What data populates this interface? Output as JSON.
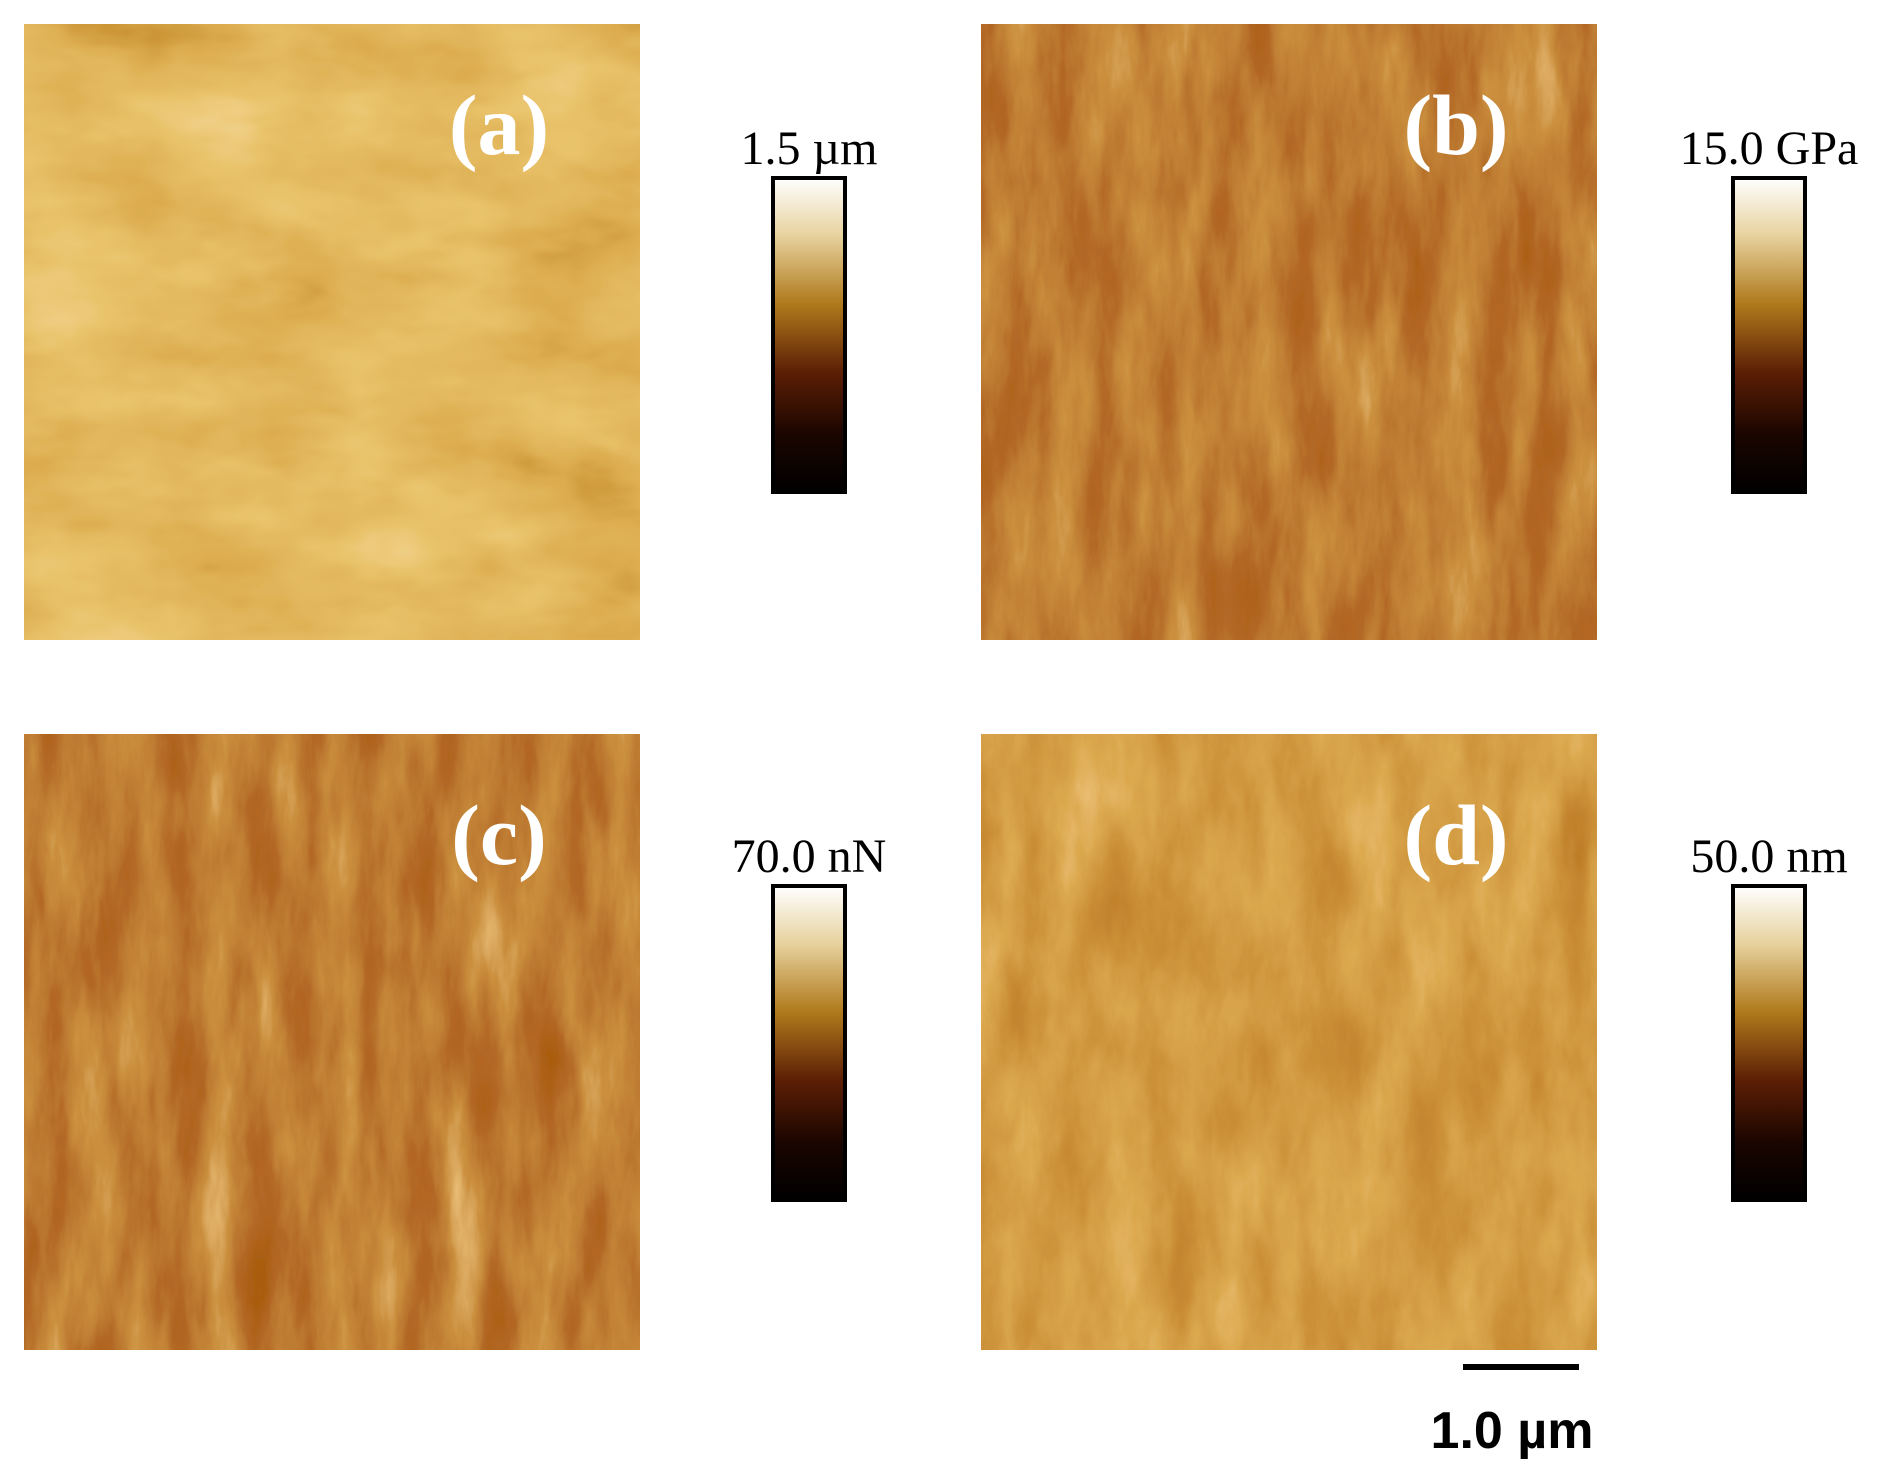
{
  "panels": [
    {
      "label": "(a)",
      "scale_max": "1.5 µm"
    },
    {
      "label": "(b)",
      "scale_max": "15.0 GPa"
    },
    {
      "label": "(c)",
      "scale_max": "70.0 nN"
    },
    {
      "label": "(d)",
      "scale_max": "50.0 nm"
    }
  ],
  "scale_bar": "1.0 µm"
}
